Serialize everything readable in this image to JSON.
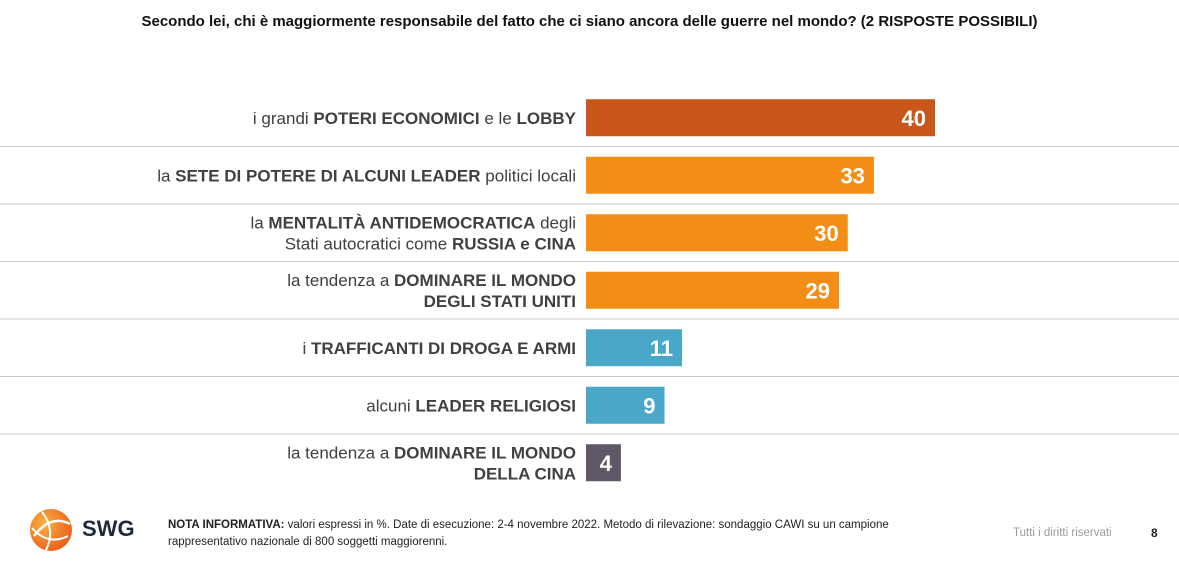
{
  "title": "Secondo lei, chi è maggiormente responsabile del fatto che ci siano ancora delle guerre nel mondo? (2 RISPOSTE POSSIBILI)",
  "chart_data": {
    "type": "bar",
    "orientation": "horizontal",
    "categories": [
      [
        {
          "t": "i grandi ",
          "b": false
        },
        {
          "t": "POTERI ECONOMICI",
          "b": true
        },
        {
          "t": " e le ",
          "b": false
        },
        {
          "t": "LOBBY",
          "b": true
        }
      ],
      [
        {
          "t": "la ",
          "b": false
        },
        {
          "t": "SETE DI POTERE DI ALCUNI LEADER",
          "b": true
        },
        {
          "t": " politici locali",
          "b": false
        }
      ],
      [
        {
          "t": "la ",
          "b": false
        },
        {
          "t": "MENTALITÀ ANTIDEMOCRATICA",
          "b": true
        },
        {
          "t": " degli",
          "b": false
        },
        {
          "br": true
        },
        {
          "t": "Stati autocratici come ",
          "b": false
        },
        {
          "t": "RUSSIA e CINA",
          "b": true
        }
      ],
      [
        {
          "t": "la tendenza a ",
          "b": false
        },
        {
          "t": "DOMINARE IL MONDO",
          "b": true
        },
        {
          "br": true
        },
        {
          "t": "DEGLI STATI UNITI",
          "b": true
        }
      ],
      [
        {
          "t": "i ",
          "b": false
        },
        {
          "t": "TRAFFICANTI DI DROGA E ARMI",
          "b": true
        }
      ],
      [
        {
          "t": "alcuni ",
          "b": false
        },
        {
          "t": "LEADER RELIGIOSI",
          "b": true
        }
      ],
      [
        {
          "t": "la tendenza a ",
          "b": false
        },
        {
          "t": "DOMINARE IL MONDO",
          "b": true
        },
        {
          "br": true
        },
        {
          "t": "DELLA CINA",
          "b": true
        }
      ]
    ],
    "values": [
      40,
      33,
      30,
      29,
      11,
      9,
      4
    ],
    "colors": [
      "#c9561b",
      "#f28e16",
      "#f28e16",
      "#f28e16",
      "#4ba7c8",
      "#4ba7c8",
      "#5f5668"
    ],
    "unit": "%",
    "xlim": [
      0,
      40
    ],
    "grid": false,
    "legend": "none"
  },
  "footer": {
    "logo_text": "SWG",
    "note_label": "NOTA INFORMATIVA:",
    "note_text": " valori espressi in %. Date di esecuzione: 2-4 novembre 2022. Metodo di rilevazione: sondaggio CAWI su un campione rappresentativo nazionale di 800 soggetti maggiorenni.",
    "rights": "Tutti i diritti riservati",
    "page_number": "8"
  }
}
